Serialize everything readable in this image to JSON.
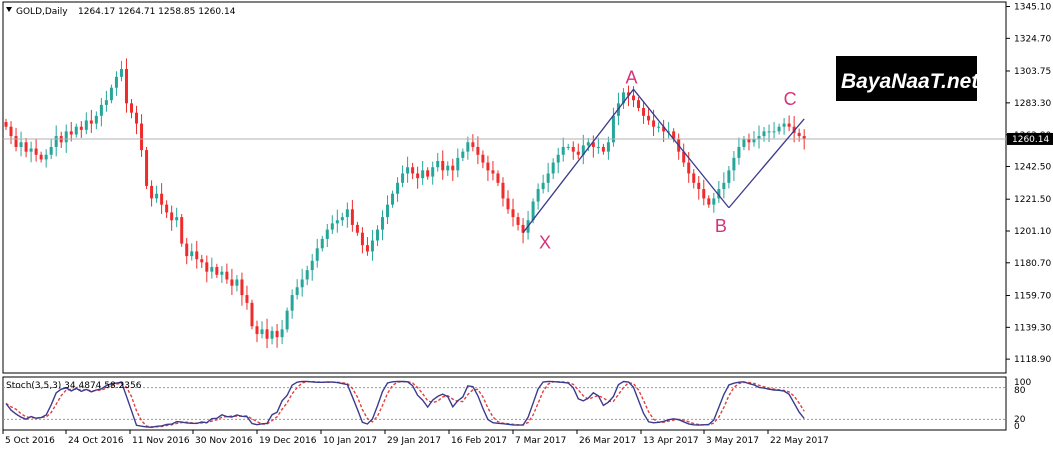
{
  "header": {
    "symbol_tf": "GOLD,Daily",
    "ohlc": "1264.17 1264.71 1258.85 1260.14"
  },
  "logo": {
    "text": "BayaNaaT.net"
  },
  "stoch_header": "Stoch(3,5,3) 34.4874 58.2356",
  "colors": {
    "bull": "#26a69a",
    "bear": "#ef2b2b",
    "pattern_line": "#3a3a8c",
    "pattern_label": "#d6337a",
    "stoch_main": "#3b3b8f",
    "stoch_signal": "#e04040"
  },
  "chart_data": {
    "type": "candlestick",
    "title": "GOLD,Daily",
    "ylim": [
      1110.0,
      1348.0
    ],
    "y_ticks": [
      "1345.10",
      "1324.70",
      "1303.75",
      "1283.30",
      "1262.80",
      "1242.50",
      "1221.50",
      "1201.10",
      "1180.70",
      "1159.70",
      "1139.30",
      "1118.90"
    ],
    "current_price": "1260.14",
    "x_tick_labels": [
      "5 Oct 2016",
      "24 Oct 2016",
      "11 Nov 2016",
      "30 Nov 2016",
      "19 Dec 2016",
      "10 Jan 2017",
      "29 Jan 2017",
      "16 Feb 2017",
      "7 Mar 2017",
      "26 Mar 2017",
      "13 Apr 2017",
      "3 May 2017",
      "22 May 2017"
    ],
    "closes": [
      1268,
      1262,
      1255,
      1258,
      1252,
      1254,
      1250,
      1247,
      1250,
      1255,
      1262,
      1258,
      1265,
      1263,
      1268,
      1266,
      1272,
      1270,
      1275,
      1282,
      1285,
      1293,
      1300,
      1305,
      1283,
      1277,
      1270,
      1253,
      1230,
      1222,
      1225,
      1218,
      1213,
      1208,
      1210,
      1193,
      1185,
      1188,
      1183,
      1181,
      1175,
      1178,
      1173,
      1175,
      1170,
      1166,
      1170,
      1160,
      1155,
      1140,
      1135,
      1138,
      1132,
      1137,
      1133,
      1138,
      1150,
      1160,
      1165,
      1170,
      1176,
      1182,
      1190,
      1196,
      1202,
      1206,
      1208,
      1210,
      1215,
      1205,
      1200,
      1192,
      1188,
      1195,
      1202,
      1210,
      1218,
      1225,
      1232,
      1238,
      1242,
      1238,
      1235,
      1240,
      1236,
      1242,
      1246,
      1240,
      1243,
      1240,
      1248,
      1252,
      1258,
      1255,
      1250,
      1245,
      1240,
      1238,
      1232,
      1222,
      1215,
      1210,
      1205,
      1200,
      1208,
      1220,
      1228,
      1232,
      1238,
      1245,
      1250,
      1255,
      1255,
      1252,
      1250,
      1256,
      1258,
      1255,
      1255,
      1252,
      1258,
      1275,
      1283,
      1290,
      1288,
      1285,
      1280,
      1275,
      1272,
      1268,
      1268,
      1265,
      1265,
      1260,
      1252,
      1245,
      1238,
      1232,
      1228,
      1222,
      1218,
      1222,
      1228,
      1232,
      1240,
      1248,
      1255,
      1260,
      1258,
      1260,
      1262,
      1265,
      1265,
      1265,
      1268,
      1270,
      1268,
      1264,
      1262,
      1260.14
    ],
    "pattern": {
      "points": [
        {
          "label": "X",
          "index": 103,
          "price": 1200
        },
        {
          "label": "A",
          "index": 125,
          "price": 1292
        },
        {
          "label": "B",
          "index": 144,
          "price": 1216
        },
        {
          "label": "C",
          "index": 159,
          "price": 1273
        }
      ],
      "line_x_end_index": 159
    },
    "stochastic": {
      "name": "Stoch(3,5,3)",
      "main": 34.4874,
      "signal": 58.2356,
      "levels": [
        20,
        80
      ],
      "axis_labels": [
        "100",
        "80",
        "20",
        "0"
      ],
      "ylim": [
        0,
        100
      ]
    }
  }
}
